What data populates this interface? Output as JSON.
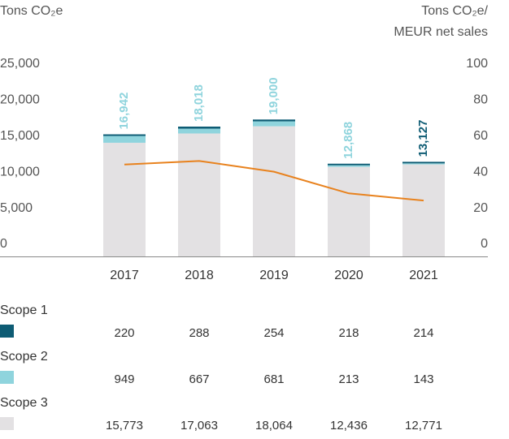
{
  "chart_data": {
    "type": "stacked_bar_line",
    "y_label": "Tons CO₂e",
    "y2_label": [
      "Tons CO₂e/",
      "MEUR net sales"
    ],
    "categories": [
      "2017",
      "2018",
      "2019",
      "2020",
      "2021"
    ],
    "series": [
      {
        "name": "Scope 1",
        "color": "#0e5c74",
        "values": [
          220,
          288,
          254,
          218,
          214
        ],
        "value_labels": [
          "220",
          "288",
          "254",
          "218",
          "214"
        ]
      },
      {
        "name": "Scope 2",
        "color": "#8fd4dd",
        "values": [
          949,
          667,
          681,
          213,
          143
        ],
        "value_labels": [
          "949",
          "667",
          "681",
          "213",
          "143"
        ]
      },
      {
        "name": "Scope 3",
        "color": "#e3e1e3",
        "values": [
          15773,
          17063,
          18064,
          12436,
          12771
        ],
        "value_labels": [
          "15,773",
          "17,063",
          "18,064",
          "12,436",
          "12,771"
        ]
      },
      {
        "type": "line",
        "axis": "y2",
        "color": "#e8821e",
        "values": [
          51,
          53,
          47,
          35,
          31
        ]
      }
    ],
    "totals": {
      "values": [
        16942,
        18018,
        19000,
        12868,
        13127
      ],
      "value_labels": [
        "16,942",
        "18,018",
        "19,000",
        "12,868",
        "13,127"
      ],
      "colors": [
        "#8fd4dd",
        "#8fd4dd",
        "#8fd4dd",
        "#8fd4dd",
        "#0e5c74"
      ]
    },
    "ylim": [
      0,
      25000
    ],
    "yticks": [
      0,
      {
        "value": 5000,
        "label": "5,000"
      },
      {
        "value": 10000,
        "label": "10,000"
      },
      {
        "value": 15000,
        "label": "15,000"
      },
      {
        "value": 20000,
        "label": "20,000"
      },
      {
        "value": 25000,
        "label": "25,000"
      }
    ],
    "y2lim": [
      0,
      100
    ],
    "y2ticks": [
      0,
      20,
      40,
      60,
      80,
      100
    ]
  }
}
